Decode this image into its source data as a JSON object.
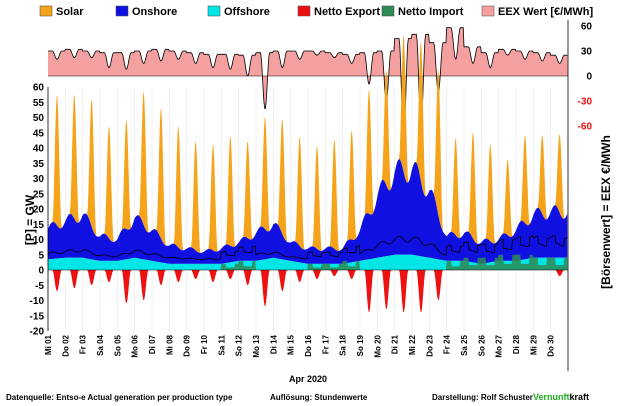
{
  "chart_data": {
    "type": "area",
    "legend": [
      {
        "name": "Solar",
        "color": "#f5a31a"
      },
      {
        "name": "Onshore",
        "color": "#1010e0"
      },
      {
        "name": "Offshore",
        "color": "#00e5e5"
      },
      {
        "name": "Netto Export",
        "color": "#ee1111"
      },
      {
        "name": "Netto Import",
        "color": "#2e8b57"
      },
      {
        "name": "EEX Wert [€/MWh]",
        "color": "#f4a0a0"
      }
    ],
    "left_axis": {
      "label": "[P] = GW",
      "min": -20,
      "max": 60,
      "ticks": [
        60,
        55,
        50,
        45,
        40,
        35,
        30,
        25,
        20,
        15,
        10,
        5,
        0,
        -5,
        -10,
        -15,
        -20
      ]
    },
    "right_axis": {
      "label": "[Börsenwert] = EEX  €/MWh",
      "ticks": [
        60,
        30,
        0,
        -30,
        -60
      ],
      "color_positive": "#000000",
      "color_negative": "#ee1111"
    },
    "x_label": "Apr 2020",
    "x_ticks": [
      "Mi 01",
      "Do 02",
      "Fr 03",
      "Sa 04",
      "So 05",
      "Mo 06",
      "Di 07",
      "Mi 08",
      "Do 09",
      "Fr 10",
      "Sa 11",
      "So 12",
      "Mo 13",
      "Di 14",
      "Mi 15",
      "Do 16",
      "Fr 17",
      "Sa 18",
      "So 19",
      "Mo 20",
      "Di 21",
      "Mi 22",
      "Do 23",
      "Fr 24",
      "Sa 25",
      "So 26",
      "Mo 27",
      "Di 28",
      "Mi 29",
      "Do 30"
    ],
    "daily": {
      "solar_peak": [
        43,
        41,
        42,
        37,
        36,
        44,
        43,
        40,
        36,
        35,
        36,
        32,
        37,
        38,
        36,
        34,
        36,
        36,
        41,
        38,
        45,
        46,
        48,
        32,
        35,
        32,
        25,
        29,
        26,
        26
      ],
      "onshore": [
        10,
        12,
        14,
        8,
        7,
        13,
        10,
        6,
        5,
        4,
        5,
        6,
        9,
        11,
        6,
        5,
        5,
        5,
        10,
        20,
        27,
        28,
        22,
        8,
        9,
        7,
        7,
        10,
        14,
        15
      ],
      "offshore": [
        3.5,
        4,
        4,
        3,
        3,
        4,
        3,
        2,
        2,
        2,
        2,
        3,
        3,
        4,
        3,
        2,
        2,
        2,
        3,
        4,
        5,
        5,
        4,
        3,
        3,
        2,
        3,
        3,
        4,
        4
      ],
      "net_import": [
        0,
        0,
        0,
        0,
        0,
        0,
        0,
        0,
        0,
        0,
        2,
        3,
        0,
        0,
        0,
        2,
        2,
        3,
        0,
        0,
        0,
        0,
        0,
        3,
        4,
        4,
        5,
        5,
        4,
        4
      ],
      "net_export_peak": [
        7,
        6,
        5,
        4,
        11,
        10,
        5,
        4,
        3,
        4,
        3,
        5,
        12,
        7,
        4,
        3,
        2,
        3,
        14,
        13,
        14,
        14,
        10,
        0,
        0,
        0,
        0,
        0,
        0,
        2
      ],
      "eex_noon": [
        20,
        22,
        22,
        10,
        8,
        15,
        18,
        20,
        15,
        10,
        8,
        0,
        -40,
        10,
        20,
        25,
        22,
        15,
        -10,
        -30,
        -75,
        -60,
        -20,
        20,
        15,
        10,
        25,
        20,
        18,
        15
      ],
      "eex_evening": [
        30,
        32,
        30,
        28,
        28,
        30,
        32,
        30,
        28,
        26,
        26,
        25,
        28,
        30,
        30,
        30,
        28,
        26,
        28,
        30,
        45,
        50,
        40,
        58,
        35,
        28,
        32,
        30,
        28,
        25
      ]
    }
  },
  "footer": {
    "source": "Datenquelle: Entso-e  Actual generation per production type",
    "resolution": "Auflösung: Stundenwerte",
    "author": "Darstellung:  Rolf Schuster",
    "brand_a": "Vernunft",
    "brand_b": "kraft"
  }
}
